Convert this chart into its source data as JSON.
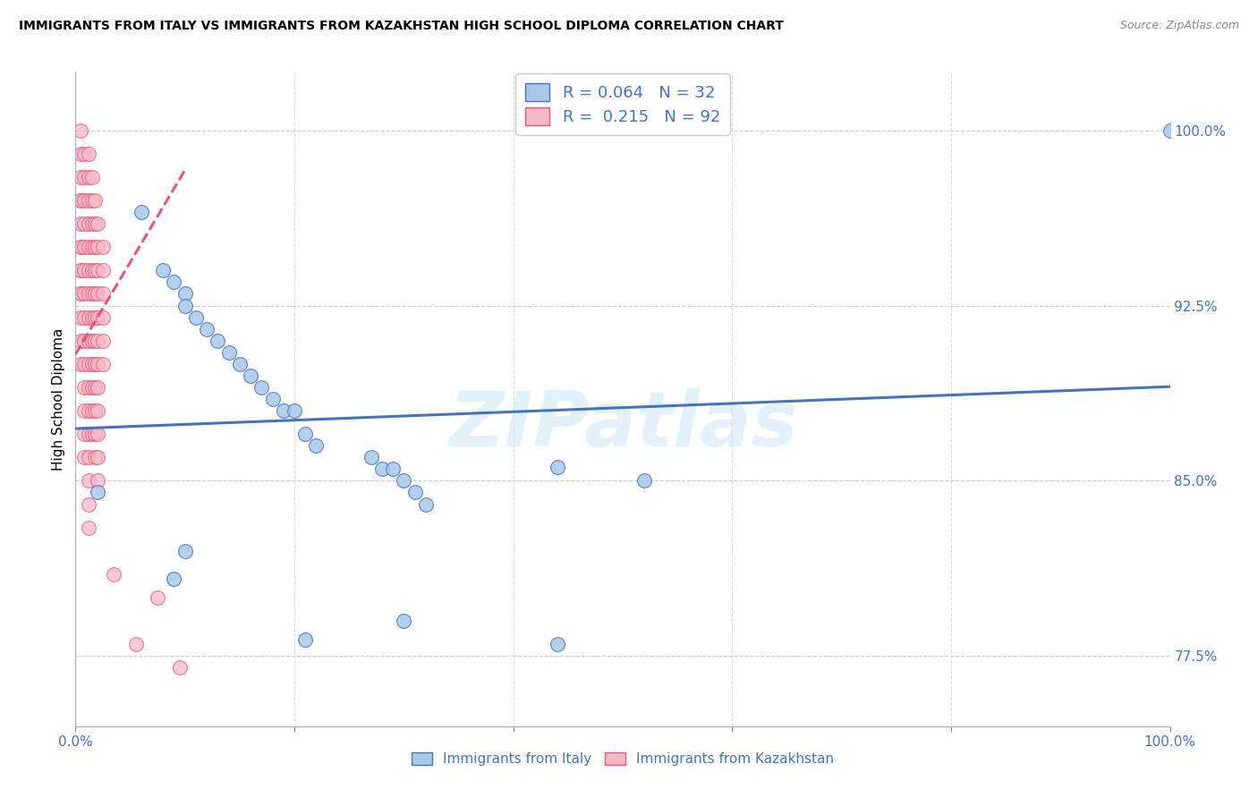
{
  "title": "IMMIGRANTS FROM ITALY VS IMMIGRANTS FROM KAZAKHSTAN HIGH SCHOOL DIPLOMA CORRELATION CHART",
  "source": "Source: ZipAtlas.com",
  "ylabel": "High School Diploma",
  "legend_italy_R": "R = 0.064",
  "legend_italy_N": "N = 32",
  "legend_kaz_R": "R =  0.215",
  "legend_kaz_N": "N = 92",
  "watermark": "ZIPatlas",
  "scatter_italy_x": [
    0.02,
    0.06,
    0.08,
    0.09,
    0.1,
    0.1,
    0.11,
    0.12,
    0.13,
    0.14,
    0.15,
    0.16,
    0.17,
    0.18,
    0.19,
    0.2,
    0.21,
    0.22,
    0.27,
    0.28,
    0.29,
    0.3,
    0.31,
    0.32,
    0.44,
    0.52,
    0.44,
    0.3,
    0.21,
    0.1,
    0.09,
    1.0
  ],
  "scatter_italy_y": [
    0.845,
    0.965,
    0.94,
    0.935,
    0.93,
    0.925,
    0.92,
    0.915,
    0.91,
    0.905,
    0.9,
    0.895,
    0.89,
    0.885,
    0.88,
    0.88,
    0.87,
    0.865,
    0.86,
    0.855,
    0.855,
    0.85,
    0.845,
    0.84,
    0.856,
    0.85,
    0.78,
    0.79,
    0.782,
    0.82,
    0.808,
    1.0
  ],
  "scatter_kaz_x": [
    0.005,
    0.005,
    0.005,
    0.005,
    0.005,
    0.005,
    0.005,
    0.005,
    0.005,
    0.005,
    0.005,
    0.005,
    0.005,
    0.005,
    0.005,
    0.008,
    0.008,
    0.008,
    0.008,
    0.008,
    0.008,
    0.008,
    0.008,
    0.008,
    0.008,
    0.008,
    0.008,
    0.008,
    0.008,
    0.012,
    0.012,
    0.012,
    0.012,
    0.012,
    0.012,
    0.012,
    0.012,
    0.012,
    0.012,
    0.012,
    0.012,
    0.012,
    0.012,
    0.012,
    0.012,
    0.012,
    0.015,
    0.015,
    0.015,
    0.015,
    0.015,
    0.015,
    0.015,
    0.015,
    0.015,
    0.015,
    0.015,
    0.015,
    0.018,
    0.018,
    0.018,
    0.018,
    0.018,
    0.018,
    0.018,
    0.018,
    0.018,
    0.018,
    0.018,
    0.018,
    0.02,
    0.02,
    0.02,
    0.02,
    0.02,
    0.02,
    0.02,
    0.02,
    0.02,
    0.02,
    0.02,
    0.02,
    0.025,
    0.025,
    0.025,
    0.025,
    0.025,
    0.025,
    0.055,
    0.095,
    0.035,
    0.075
  ],
  "scatter_kaz_y": [
    1.0,
    0.99,
    0.98,
    0.97,
    0.97,
    0.96,
    0.95,
    0.95,
    0.94,
    0.94,
    0.93,
    0.93,
    0.92,
    0.91,
    0.9,
    0.99,
    0.98,
    0.97,
    0.96,
    0.95,
    0.94,
    0.93,
    0.92,
    0.91,
    0.9,
    0.89,
    0.88,
    0.87,
    0.86,
    0.99,
    0.98,
    0.97,
    0.96,
    0.95,
    0.94,
    0.93,
    0.92,
    0.91,
    0.9,
    0.89,
    0.88,
    0.87,
    0.86,
    0.85,
    0.84,
    0.83,
    0.98,
    0.97,
    0.96,
    0.95,
    0.94,
    0.93,
    0.92,
    0.91,
    0.9,
    0.89,
    0.88,
    0.87,
    0.97,
    0.96,
    0.95,
    0.94,
    0.93,
    0.92,
    0.91,
    0.9,
    0.89,
    0.88,
    0.87,
    0.86,
    0.96,
    0.95,
    0.94,
    0.93,
    0.92,
    0.91,
    0.9,
    0.89,
    0.88,
    0.87,
    0.86,
    0.85,
    0.95,
    0.94,
    0.93,
    0.92,
    0.91,
    0.9,
    0.78,
    0.77,
    0.81,
    0.8
  ],
  "italy_color": "#a8c8e8",
  "kaz_color": "#f5b8c8",
  "italy_edge_color": "#4472c4",
  "kaz_edge_color": "#e85575",
  "italy_line_color": "#4472c4",
  "kaz_line_color": "#e85575",
  "xlim": [
    0.0,
    1.0
  ],
  "ylim": [
    0.745,
    1.025
  ],
  "y_ticks": [
    0.775,
    0.85,
    0.925,
    1.0
  ],
  "y_tick_labels": [
    "77.5%",
    "85.0%",
    "92.5%",
    "100.0%"
  ],
  "x_ticks": [
    0.0,
    0.2,
    0.4,
    0.6,
    0.8,
    1.0
  ],
  "x_tick_labels_show": [
    "0.0%",
    "",
    "",
    "",
    "",
    "100.0%"
  ],
  "figsize": [
    14.06,
    8.92
  ],
  "dpi": 100
}
